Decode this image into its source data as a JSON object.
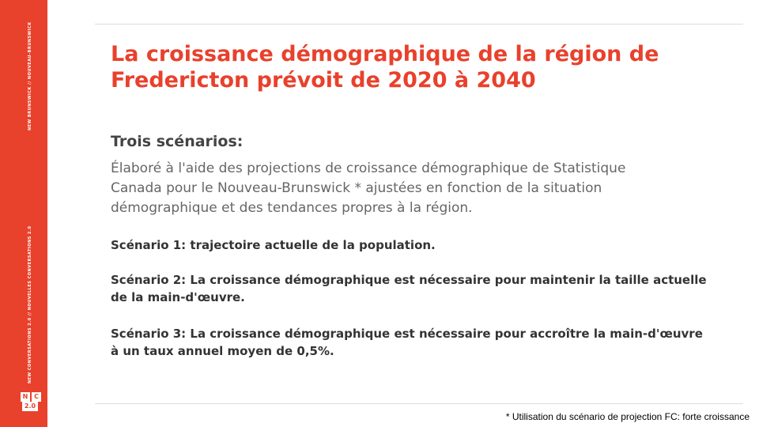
{
  "sidebar": {
    "top_text": "NEW BRUNSWICK // NOUVEAU-BRUNSWICK",
    "bottom_text": "NEW CONVERSATIONS 2.0 // NOUVELLES CONVERSATIONS 2.0",
    "logo": [
      "N",
      "C",
      "2.0"
    ]
  },
  "title": [
    "La croissance démographique de la région de",
    "Fredericton prévoit de 2020 à 2040"
  ],
  "subtitle": "Trois scénarios:",
  "intro": [
    "Élaboré à l'aide des projections de croissance démographique de Statistique",
    "Canada pour le Nouveau-Brunswick * ajustées en fonction de la situation",
    "démographique et des tendances propres à la région."
  ],
  "scenarios": [
    [
      "Scénario 1: trajectoire actuelle de la population."
    ],
    [
      "Scénario 2: La croissance démographique est nécessaire pour maintenir la taille actuelle",
      "de la main-d'œuvre."
    ],
    [
      "Scénario 3: La croissance démographique est nécessaire pour accroître la main-d'œuvre",
      "à un taux annuel moyen de 0,5%."
    ]
  ],
  "footnote": "* Utilisation du scénario de projection FC: forte croissance"
}
